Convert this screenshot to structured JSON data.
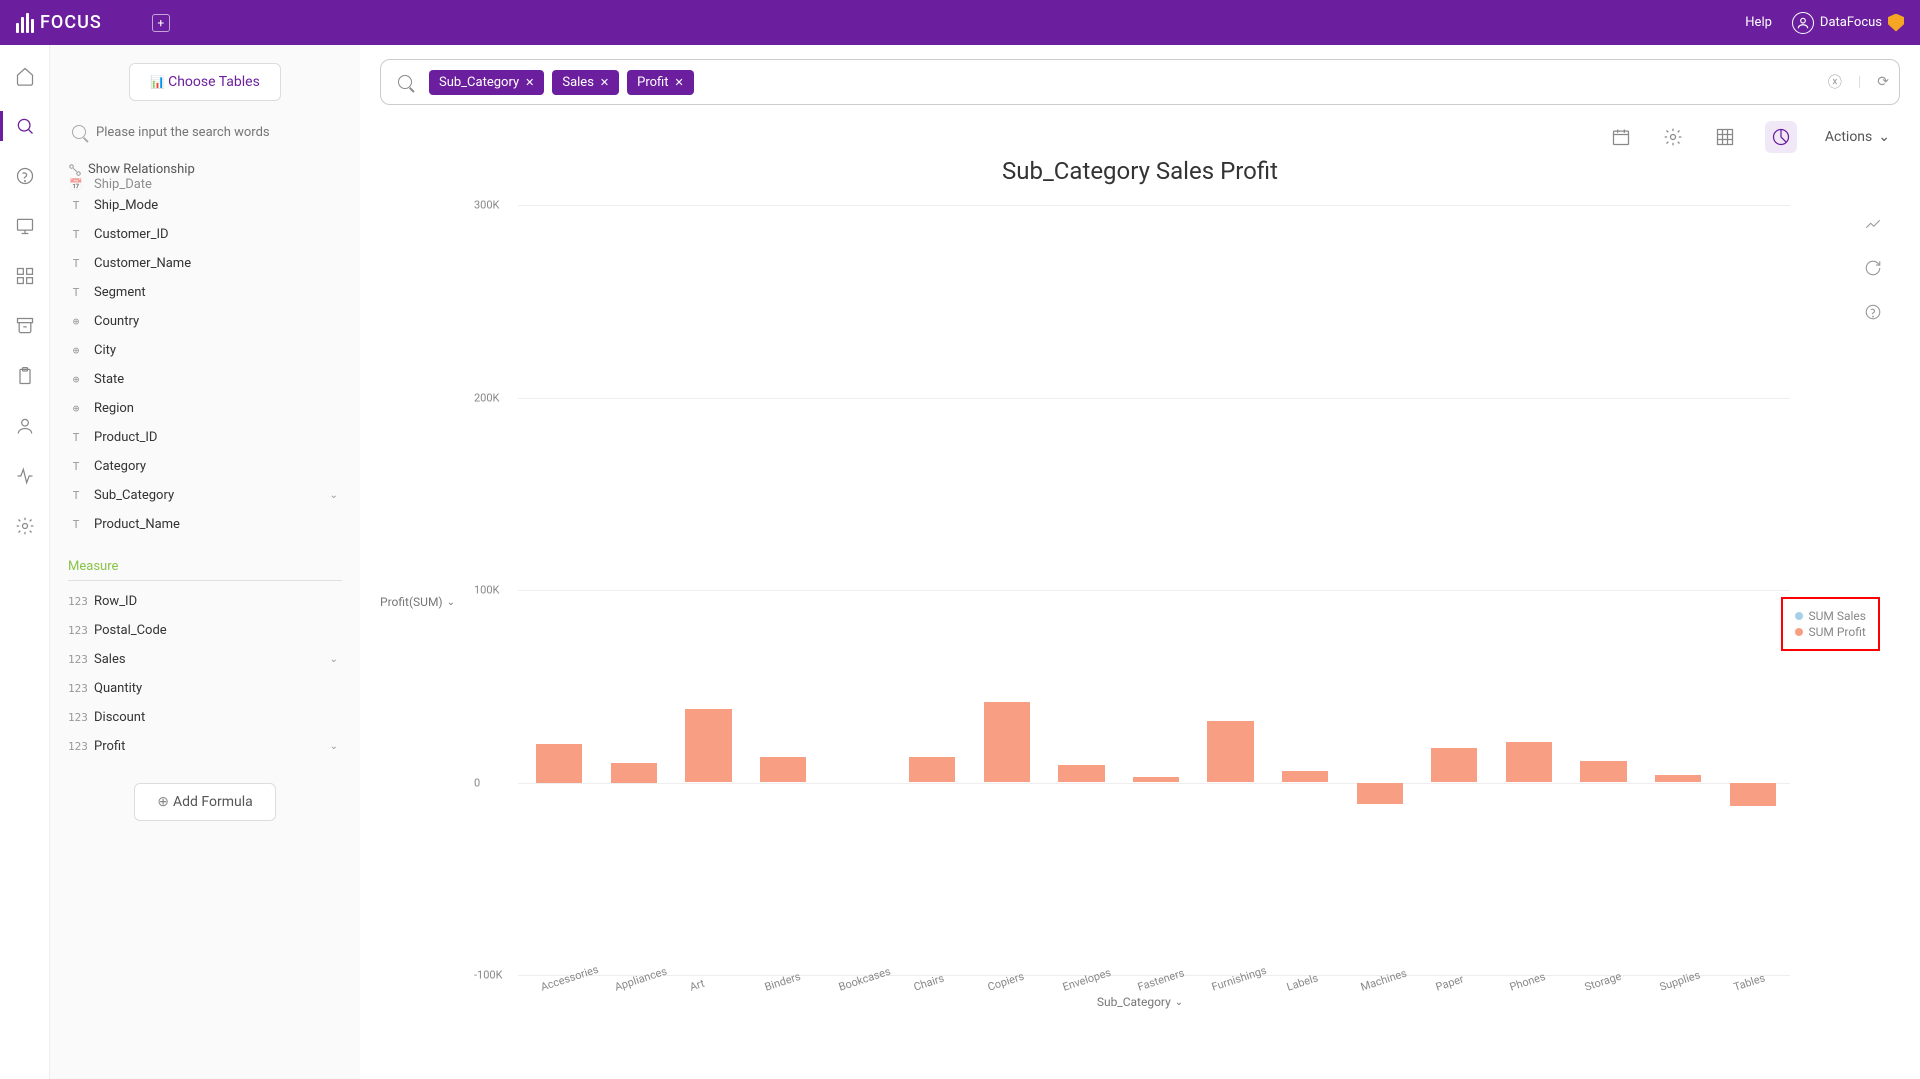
{
  "header": {
    "logo_text": "FOCUS",
    "help_label": "Help",
    "user_name": "DataFocus"
  },
  "sidebar": {
    "choose_tables_label": "Choose Tables",
    "search_placeholder": "Please input the search words",
    "show_relationship_label": "Show Relationship",
    "fields_attribute": [
      {
        "type": "date",
        "name": "Ship_Date"
      },
      {
        "type": "T",
        "name": "Ship_Mode"
      },
      {
        "type": "T",
        "name": "Customer_ID"
      },
      {
        "type": "T",
        "name": "Customer_Name"
      },
      {
        "type": "T",
        "name": "Segment"
      },
      {
        "type": "geo",
        "name": "Country"
      },
      {
        "type": "geo",
        "name": "City"
      },
      {
        "type": "geo",
        "name": "State"
      },
      {
        "type": "geo",
        "name": "Region"
      },
      {
        "type": "T",
        "name": "Product_ID"
      },
      {
        "type": "T",
        "name": "Category"
      },
      {
        "type": "T",
        "name": "Sub_Category",
        "expand": true
      },
      {
        "type": "T",
        "name": "Product_Name"
      }
    ],
    "measure_header": "Measure",
    "fields_measure": [
      {
        "type": "123",
        "name": "Row_ID"
      },
      {
        "type": "123",
        "name": "Postal_Code"
      },
      {
        "type": "123",
        "name": "Sales",
        "expand": true
      },
      {
        "type": "123",
        "name": "Quantity"
      },
      {
        "type": "123",
        "name": "Discount"
      },
      {
        "type": "123",
        "name": "Profit",
        "expand": true
      }
    ],
    "add_formula_label": "Add Formula"
  },
  "query": {
    "chips": [
      "Sub_Category",
      "Sales",
      "Profit"
    ]
  },
  "toolbar": {
    "actions_label": "Actions"
  },
  "chart": {
    "title": "Sub_Category Sales Profit",
    "y_axis_label": "Profit(SUM)",
    "x_axis_label": "Sub_Category",
    "type": "bar",
    "bar_color": "#f89e82",
    "grid_color": "#eeeeee",
    "y_ticks": [
      {
        "value": 300000,
        "label": "300K"
      },
      {
        "value": 200000,
        "label": "200K"
      },
      {
        "value": 100000,
        "label": "100K"
      },
      {
        "value": 0,
        "label": "0"
      },
      {
        "value": -100000,
        "label": "-100K"
      }
    ],
    "ylim": [
      -100000,
      300000
    ],
    "categories": [
      "Accessories",
      "Appliances",
      "Art",
      "Binders",
      "Bookcases",
      "Chairs",
      "Copiers",
      "Envelopes",
      "Fasteners",
      "Furnishings",
      "Labels",
      "Machines",
      "Paper",
      "Phones",
      "Storage",
      "Supplies",
      "Tables"
    ],
    "values": [
      20000,
      10000,
      38000,
      13000,
      0,
      13000,
      42000,
      9000,
      3000,
      32000,
      6000,
      -11000,
      18000,
      21000,
      11000,
      4000,
      -12000
    ],
    "legend": [
      {
        "color": "#a7d0e8",
        "label": "SUM Sales"
      },
      {
        "color": "#f89e82",
        "label": "SUM Profit"
      }
    ]
  }
}
